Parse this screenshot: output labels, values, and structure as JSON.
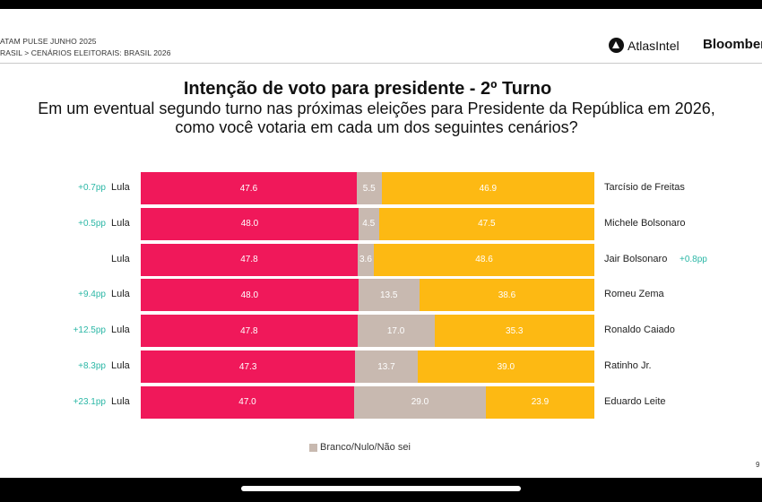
{
  "header": {
    "line1": "ATAM PULSE JUNHO 2025",
    "line2": "RASIL > CENÁRIOS ELEITORAIS: BRASIL 2026",
    "logo_atlas": "AtlasIntel",
    "logo_bloomberg": "Bloomberg"
  },
  "page_number": "9",
  "colors": {
    "lula": "#f0185a",
    "blank": "#c8b9b0",
    "opponent": "#fdb913",
    "delta": "#2bb7a6"
  },
  "chart_data": {
    "type": "bar",
    "stacked": true,
    "orientation": "horizontal",
    "title": "Intenção de voto para presidente - 2º Turno",
    "subtitle_line1": "Em um eventual segundo turno nas próximas eleições para Presidente da República em 2026,",
    "subtitle_line2": "como você votaria em cada um dos seguintes cenários?",
    "legend": "Branco/Nulo/Não sei",
    "scenarios": [
      {
        "left": "Lula",
        "left_delta": "+0.7pp",
        "lula": 47.6,
        "blank": 5.5,
        "opp": 46.9,
        "right": "Tarcísio de Freitas",
        "right_delta": ""
      },
      {
        "left": "Lula",
        "left_delta": "+0.5pp",
        "lula": 48.0,
        "blank": 4.5,
        "opp": 47.5,
        "right": "Michele Bolsonaro",
        "right_delta": ""
      },
      {
        "left": "Lula",
        "left_delta": "",
        "lula": 47.8,
        "blank": 3.6,
        "opp": 48.6,
        "right": "Jair Bolsonaro",
        "right_delta": "+0.8pp"
      },
      {
        "left": "Lula",
        "left_delta": "+9.4pp",
        "lula": 48.0,
        "blank": 13.5,
        "opp": 38.6,
        "right": "Romeu Zema",
        "right_delta": ""
      },
      {
        "left": "Lula",
        "left_delta": "+12.5pp",
        "lula": 47.8,
        "blank": 17.0,
        "opp": 35.3,
        "right": "Ronaldo Caiado",
        "right_delta": ""
      },
      {
        "left": "Lula",
        "left_delta": "+8.3pp",
        "lula": 47.3,
        "blank": 13.7,
        "opp": 39.0,
        "right": "Ratinho Jr.",
        "right_delta": ""
      },
      {
        "left": "Lula",
        "left_delta": "+23.1pp",
        "lula": 47.0,
        "blank": 29.0,
        "opp": 23.9,
        "right": "Eduardo Leite",
        "right_delta": ""
      }
    ]
  }
}
